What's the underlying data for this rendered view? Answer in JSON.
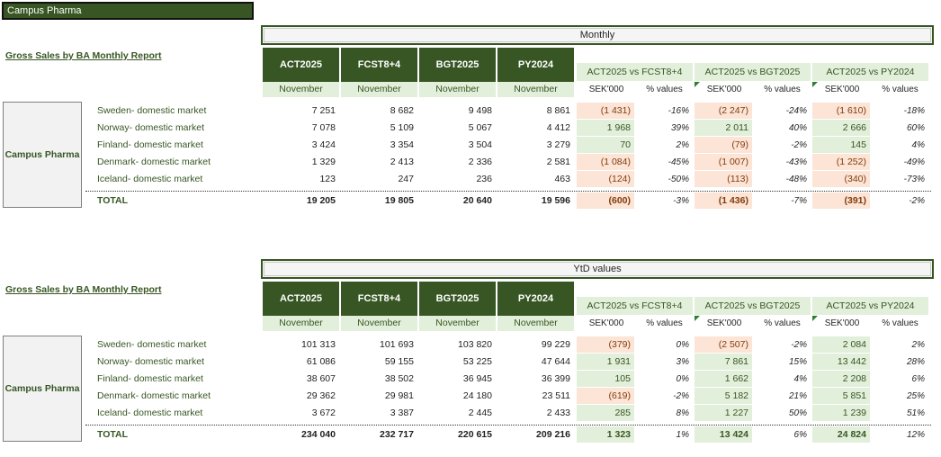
{
  "app_title": "Campus Pharma",
  "colors": {
    "dark_green": "#375623",
    "light_green": "#e2efda",
    "light_red": "#fce4d6",
    "text_red": "#833c0b"
  },
  "sections": [
    {
      "header": "Monthly",
      "report_title": "Gross Sales by BA Monthly Report",
      "entity": "Campus Pharma",
      "columns": [
        {
          "label": "ACT2025",
          "sub": "November"
        },
        {
          "label": "FCST8+4",
          "sub": "November"
        },
        {
          "label": "BGT2025",
          "sub": "November"
        },
        {
          "label": "PY2024",
          "sub": "November"
        }
      ],
      "comparisons": [
        {
          "label": "ACT2025 vs FCST8+4",
          "sub1": "SEK'000",
          "sub2": "% values"
        },
        {
          "label": "ACT2025 vs BGT2025",
          "sub1": "SEK'000",
          "sub2": "% values"
        },
        {
          "label": "ACT2025 vs PY2024",
          "sub1": "SEK'000",
          "sub2": "% values"
        }
      ],
      "rows": [
        {
          "label": "Sweden- domestic market",
          "v": [
            "7 251",
            "8 682",
            "9 498",
            "8 861"
          ],
          "c": [
            {
              "d": "(1 431)",
              "p": "-16%",
              "neg": true
            },
            {
              "d": "(2 247)",
              "p": "-24%",
              "neg": true
            },
            {
              "d": "(1 610)",
              "p": "-18%",
              "neg": true
            }
          ]
        },
        {
          "label": "Norway- domestic market",
          "v": [
            "7 078",
            "5 109",
            "5 067",
            "4 412"
          ],
          "c": [
            {
              "d": "1 968",
              "p": "39%",
              "neg": false
            },
            {
              "d": "2 011",
              "p": "40%",
              "neg": false
            },
            {
              "d": "2 666",
              "p": "60%",
              "neg": false
            }
          ]
        },
        {
          "label": "Finland- domestic market",
          "v": [
            "3 424",
            "3 354",
            "3 504",
            "3 279"
          ],
          "c": [
            {
              "d": "70",
              "p": "2%",
              "neg": false
            },
            {
              "d": "(79)",
              "p": "-2%",
              "neg": true
            },
            {
              "d": "145",
              "p": "4%",
              "neg": false
            }
          ]
        },
        {
          "label": "Denmark- domestic market",
          "v": [
            "1 329",
            "2 413",
            "2 336",
            "2 581"
          ],
          "c": [
            {
              "d": "(1 084)",
              "p": "-45%",
              "neg": true
            },
            {
              "d": "(1 007)",
              "p": "-43%",
              "neg": true
            },
            {
              "d": "(1 252)",
              "p": "-49%",
              "neg": true
            }
          ]
        },
        {
          "label": "Iceland- domestic market",
          "v": [
            "123",
            "247",
            "236",
            "463"
          ],
          "c": [
            {
              "d": "(124)",
              "p": "-50%",
              "neg": true
            },
            {
              "d": "(113)",
              "p": "-48%",
              "neg": true
            },
            {
              "d": "(340)",
              "p": "-73%",
              "neg": true
            }
          ]
        }
      ],
      "total": {
        "label": "TOTAL",
        "v": [
          "19 205",
          "19 805",
          "20 640",
          "19 596"
        ],
        "c": [
          {
            "d": "(600)",
            "p": "-3%",
            "neg": true
          },
          {
            "d": "(1 436)",
            "p": "-7%",
            "neg": true
          },
          {
            "d": "(391)",
            "p": "-2%",
            "neg": true
          }
        ]
      }
    },
    {
      "header": "YtD values",
      "report_title": "Gross Sales by BA Monthly Report",
      "entity": "Campus Pharma",
      "columns": [
        {
          "label": "ACT2025",
          "sub": "November"
        },
        {
          "label": "FCST8+4",
          "sub": "November"
        },
        {
          "label": "BGT2025",
          "sub": "November"
        },
        {
          "label": "PY2024",
          "sub": "November"
        }
      ],
      "comparisons": [
        {
          "label": "ACT2025 vs FCST8+4",
          "sub1": "SEK'000",
          "sub2": "% values"
        },
        {
          "label": "ACT2025 vs BGT2025",
          "sub1": "SEK'000",
          "sub2": "% values"
        },
        {
          "label": "ACT2025 vs PY2024",
          "sub1": "SEK'000",
          "sub2": "% values"
        }
      ],
      "rows": [
        {
          "label": "Sweden- domestic market",
          "v": [
            "101 313",
            "101 693",
            "103 820",
            "99 229"
          ],
          "c": [
            {
              "d": "(379)",
              "p": "0%",
              "neg": true
            },
            {
              "d": "(2 507)",
              "p": "-2%",
              "neg": true
            },
            {
              "d": "2 084",
              "p": "2%",
              "neg": false
            }
          ]
        },
        {
          "label": "Norway- domestic market",
          "v": [
            "61 086",
            "59 155",
            "53 225",
            "47 644"
          ],
          "c": [
            {
              "d": "1 931",
              "p": "3%",
              "neg": false
            },
            {
              "d": "7 861",
              "p": "15%",
              "neg": false
            },
            {
              "d": "13 442",
              "p": "28%",
              "neg": false
            }
          ]
        },
        {
          "label": "Finland- domestic market",
          "v": [
            "38 607",
            "38 502",
            "36 945",
            "36 399"
          ],
          "c": [
            {
              "d": "105",
              "p": "0%",
              "neg": false
            },
            {
              "d": "1 662",
              "p": "4%",
              "neg": false
            },
            {
              "d": "2 208",
              "p": "6%",
              "neg": false
            }
          ]
        },
        {
          "label": "Denmark- domestic market",
          "v": [
            "29 362",
            "29 981",
            "24 180",
            "23 511"
          ],
          "c": [
            {
              "d": "(619)",
              "p": "-2%",
              "neg": true
            },
            {
              "d": "5 182",
              "p": "21%",
              "neg": false
            },
            {
              "d": "5 851",
              "p": "25%",
              "neg": false
            }
          ]
        },
        {
          "label": "Iceland- domestic market",
          "v": [
            "3 672",
            "3 387",
            "2 445",
            "2 433"
          ],
          "c": [
            {
              "d": "285",
              "p": "8%",
              "neg": false
            },
            {
              "d": "1 227",
              "p": "50%",
              "neg": false
            },
            {
              "d": "1 239",
              "p": "51%",
              "neg": false
            }
          ]
        }
      ],
      "total": {
        "label": "TOTAL",
        "v": [
          "234 040",
          "232 717",
          "220 615",
          "209 216"
        ],
        "c": [
          {
            "d": "1 323",
            "p": "1%",
            "neg": false
          },
          {
            "d": "13 424",
            "p": "6%",
            "neg": false
          },
          {
            "d": "24 824",
            "p": "12%",
            "neg": false
          }
        ]
      }
    }
  ]
}
